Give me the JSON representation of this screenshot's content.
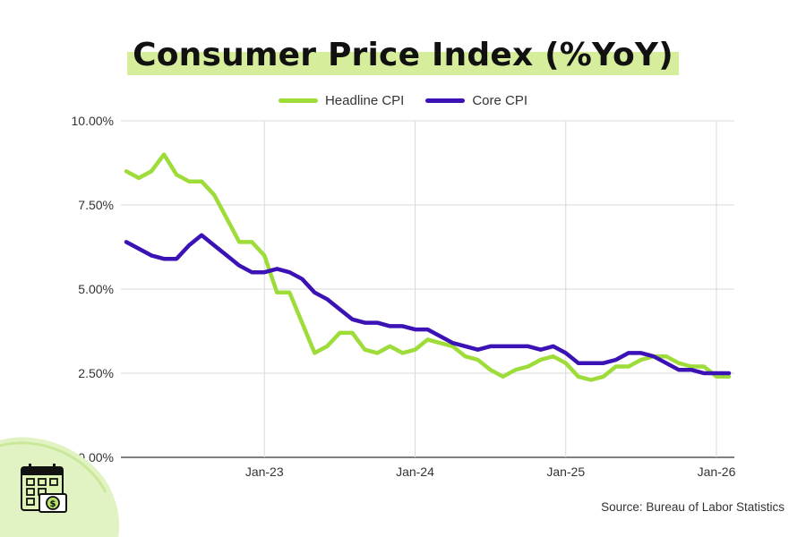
{
  "header": {
    "title": "Consumer Price Index (%YoY)"
  },
  "footer": {
    "source": "Source: Bureau of Labor Statistics"
  },
  "colors": {
    "headline": "#9edc3a",
    "core": "#3a12b5",
    "title_highlight": "#d6ee9c",
    "grid": "#d9d9d9"
  },
  "chart_data": {
    "type": "line",
    "title": "Consumer Price Index (%YoY)",
    "xlabel": "",
    "ylabel": "",
    "ylim": [
      0,
      10
    ],
    "y_ticks": [
      "10.00%",
      "7.50%",
      "5.00%",
      "2.50%",
      "0.00%"
    ],
    "y_tick_values": [
      10,
      7.5,
      5,
      2.5,
      0
    ],
    "x_ticks": [
      "Jan-23",
      "Jan-24",
      "Jan-25",
      "Jan-26"
    ],
    "x_tick_indices": [
      11,
      23,
      35,
      47
    ],
    "x": [
      "Feb-22",
      "Mar-22",
      "Apr-22",
      "May-22",
      "Jun-22",
      "Jul-22",
      "Aug-22",
      "Sep-22",
      "Oct-22",
      "Nov-22",
      "Dec-22",
      "Jan-23",
      "Feb-23",
      "Mar-23",
      "Apr-23",
      "May-23",
      "Jun-23",
      "Jul-23",
      "Aug-23",
      "Sep-23",
      "Oct-23",
      "Nov-23",
      "Dec-23",
      "Jan-24",
      "Feb-24",
      "Mar-24",
      "Apr-24",
      "May-24",
      "Jun-24",
      "Jul-24",
      "Aug-24",
      "Sep-24",
      "Oct-24",
      "Nov-24",
      "Dec-24",
      "Jan-25",
      "Feb-25",
      "Mar-25",
      "Apr-25",
      "May-25",
      "Jun-25",
      "Jul-25",
      "Aug-25",
      "Sep-25",
      "Oct-25",
      "Nov-25",
      "Dec-25",
      "Jan-26",
      "Feb-26"
    ],
    "legend": "top-center",
    "grid": true,
    "series": [
      {
        "name": "Headline CPI",
        "color": "#9edc3a",
        "values": [
          8.5,
          8.3,
          8.5,
          9.0,
          8.4,
          8.2,
          8.2,
          7.8,
          7.1,
          6.4,
          6.4,
          6.0,
          4.9,
          4.9,
          4.0,
          3.1,
          3.3,
          3.7,
          3.7,
          3.2,
          3.1,
          3.3,
          3.1,
          3.2,
          3.5,
          3.4,
          3.3,
          3.0,
          2.9,
          2.6,
          2.4,
          2.6,
          2.7,
          2.9,
          3.0,
          2.8,
          2.4,
          2.3,
          2.4,
          2.7,
          2.7,
          2.9,
          3.0,
          3.0,
          2.8,
          2.7,
          2.7,
          2.4,
          2.4
        ]
      },
      {
        "name": "Core CPI",
        "color": "#3a12b5",
        "values": [
          6.4,
          6.2,
          6.0,
          5.9,
          5.9,
          6.3,
          6.6,
          6.3,
          6.0,
          5.7,
          5.5,
          5.5,
          5.6,
          5.5,
          5.3,
          4.9,
          4.7,
          4.4,
          4.1,
          4.0,
          4.0,
          3.9,
          3.9,
          3.8,
          3.8,
          3.6,
          3.4,
          3.3,
          3.2,
          3.3,
          3.3,
          3.3,
          3.3,
          3.2,
          3.3,
          3.1,
          2.8,
          2.8,
          2.8,
          2.9,
          3.1,
          3.1,
          3.0,
          2.8,
          2.6,
          2.6,
          2.5,
          2.5,
          2.5
        ]
      }
    ]
  }
}
